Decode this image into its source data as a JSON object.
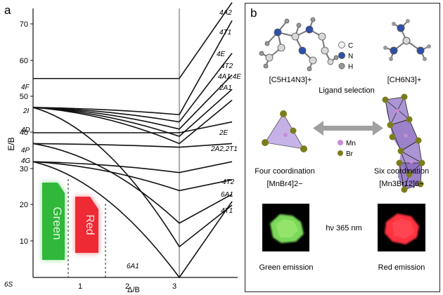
{
  "figure": {
    "panel_a": {
      "label": "a",
      "y_axis_label": "E/B",
      "x_axis_label": "Δ/B",
      "y_ticks": [
        "10",
        "20",
        "30",
        "40",
        "50",
        "60",
        "70"
      ],
      "x_ticks": [
        "1",
        "2",
        "3"
      ],
      "origin_label": "6S",
      "left_terms": [
        "4F",
        "2I",
        "4D",
        "4P",
        "4G"
      ],
      "right_terms": [
        "4A2",
        "4T1",
        "4E",
        "4T2",
        "4A1,4E",
        "2A1",
        "2E",
        "2A2,2T1",
        "4T2",
        "6A1",
        "4T1"
      ],
      "ground_label": "6A1",
      "green_box_label": "Green",
      "red_box_label": "Red",
      "chart_data": {
        "type": "line",
        "xlabel": "Δ/B",
        "ylabel": "E/B",
        "xlim": [
          0,
          3.8
        ],
        "ylim": [
          0,
          76
        ],
        "critical_x": 2.8,
        "series": [
          {
            "x": [
              0,
              2.8,
              3.8
            ],
            "y": [
              55,
              55,
              76
            ]
          },
          {
            "x": [
              0,
              2.8,
              3.8
            ],
            "y": [
              47,
              45,
              71
            ]
          },
          {
            "x": [
              0,
              2.8,
              3.8
            ],
            "y": [
              47,
              43,
              62
            ]
          },
          {
            "x": [
              0,
              2.8,
              3.8
            ],
            "y": [
              47,
              41,
              56
            ]
          },
          {
            "x": [
              0,
              2.8,
              3.8
            ],
            "y": [
              47,
              39,
              52
            ]
          },
          {
            "x": [
              0,
              2.8,
              3.8
            ],
            "y": [
              47,
              37,
              49
            ]
          },
          {
            "x": [
              0,
              2.8,
              3.8
            ],
            "y": [
              40,
              40,
              43
            ]
          },
          {
            "x": [
              0,
              2.8,
              3.8
            ],
            "y": [
              37,
              36,
              37
            ]
          },
          {
            "x": [
              0,
              2.8,
              3.8
            ],
            "y": [
              32,
              29,
              32
            ]
          },
          {
            "x": [
              0,
              2.8,
              3.8
            ],
            "y": [
              32,
              24,
              27
            ]
          },
          {
            "x": [
              0,
              2.8,
              3.8
            ],
            "y": [
              37,
              15,
              23
            ]
          },
          {
            "x": [
              0,
              2.8,
              3.8
            ],
            "y": [
              47,
              8.5,
              20
            ]
          },
          {
            "x": [
              0,
              2.8,
              3.8
            ],
            "y": [
              32,
              0,
              21
            ]
          }
        ]
      }
    },
    "panel_b": {
      "label": "b",
      "cation_left": "[C5H14N3]+",
      "cation_right": "[CH6N3]+",
      "atom_legend_c": "C",
      "atom_legend_n": "N",
      "atom_legend_h": "H",
      "ligand_selection": "Ligand selection",
      "metal_legend_mn": "Mn",
      "metal_legend_br": "Br",
      "four_coord_title": "Four coordination",
      "four_coord_formula": "[MnBr4]2−",
      "six_coord_title": "Six coordination",
      "six_coord_formula": "[Mn3Br12]6−",
      "excitation": "hν 365 nm",
      "green_emission": "Green emission",
      "red_emission": "Red emission",
      "colors": {
        "green": "#3cc84a",
        "red": "#ff2a3c",
        "polyhedron": "#a58ad0",
        "br": "#7a7d1a",
        "mn": "#c98cd8"
      }
    }
  }
}
